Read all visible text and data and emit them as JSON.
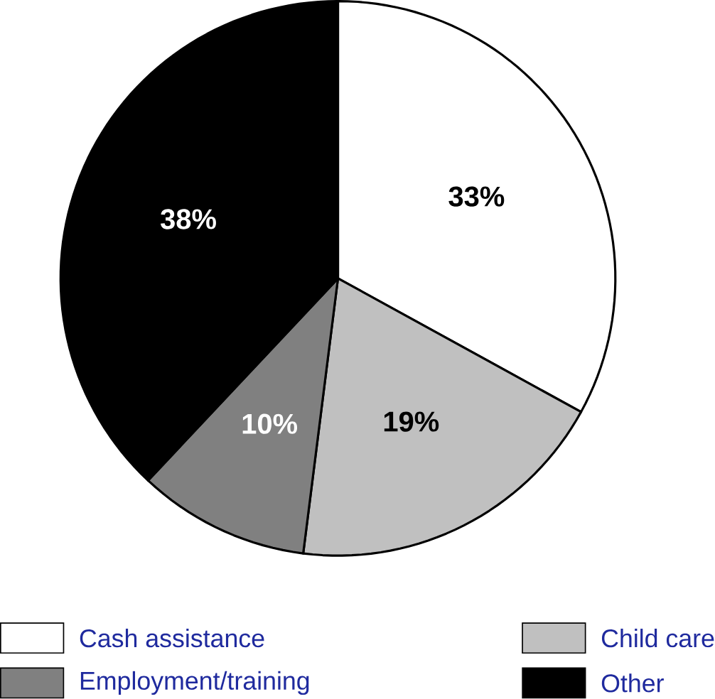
{
  "chart_data": {
    "type": "pie",
    "categories": [
      "Cash assistance",
      "Child care",
      "Employment/training",
      "Other"
    ],
    "values": [
      33,
      19,
      10,
      38
    ],
    "colors": [
      "#ffffff",
      "#c0c0c0",
      "#808080",
      "#000000"
    ],
    "value_labels": [
      "33%",
      "19%",
      "10%",
      "38%"
    ],
    "legend": "bottom"
  }
}
